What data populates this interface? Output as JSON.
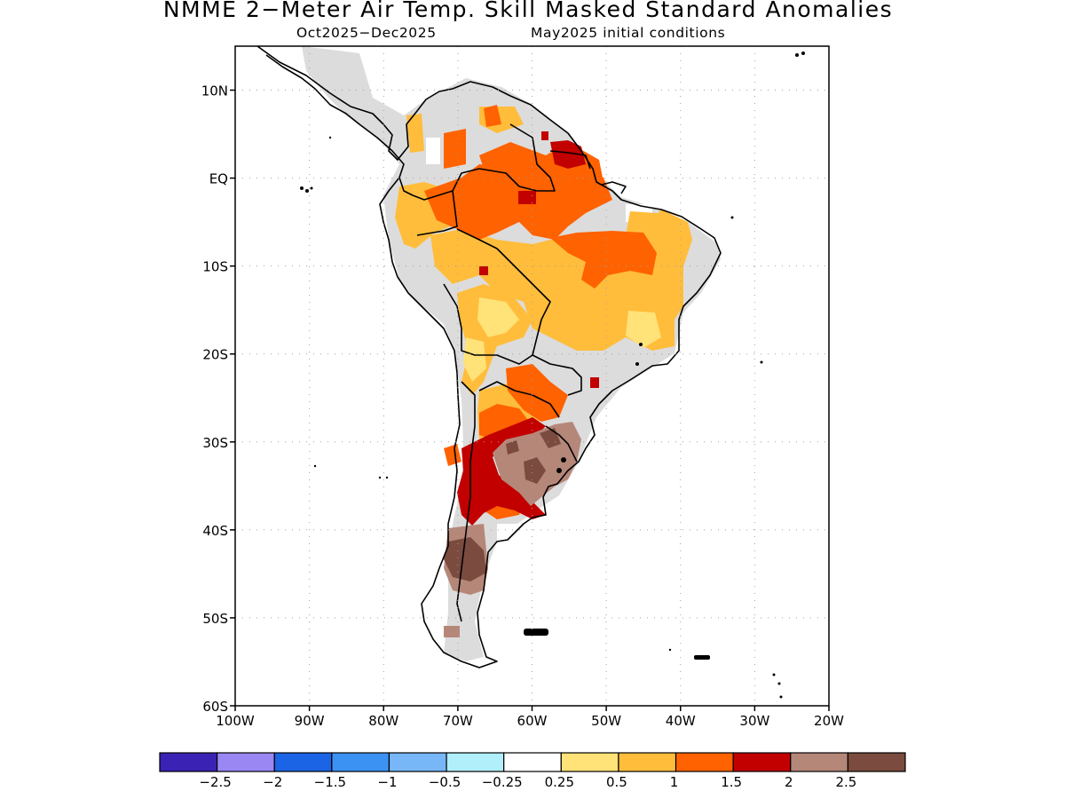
{
  "title": "NMME 2−Meter Air Temp. Skill Masked Standard Anomalies",
  "subtitle_left": "Oct2025−Dec2025",
  "subtitle_right": "May2025 initial conditions",
  "map": {
    "region": "South America",
    "lon_range": [
      -100,
      -20
    ],
    "lat_range": [
      -60,
      15
    ],
    "lat_ticks": [
      {
        "value": 10,
        "label": "10N"
      },
      {
        "value": 0,
        "label": "EQ"
      },
      {
        "value": -10,
        "label": "10S"
      },
      {
        "value": -20,
        "label": "20S"
      },
      {
        "value": -30,
        "label": "30S"
      },
      {
        "value": -40,
        "label": "40S"
      },
      {
        "value": -50,
        "label": "50S"
      },
      {
        "value": -60,
        "label": "60S"
      }
    ],
    "lon_ticks": [
      {
        "value": -100,
        "label": "100W"
      },
      {
        "value": -90,
        "label": "90W"
      },
      {
        "value": -80,
        "label": "80W"
      },
      {
        "value": -70,
        "label": "70W"
      },
      {
        "value": -60,
        "label": "60W"
      },
      {
        "value": -50,
        "label": "50W"
      },
      {
        "value": -40,
        "label": "40W"
      },
      {
        "value": -30,
        "label": "30W"
      },
      {
        "value": -20,
        "label": "20W"
      }
    ],
    "grid": true,
    "masked_color": "#dcdcdc"
  },
  "colorbar": {
    "colors": [
      "#3a22b4",
      "#9b87f3",
      "#1c64e6",
      "#3b92f2",
      "#77b7f7",
      "#b1effa",
      "#ffffff",
      "#ffe278",
      "#ffbd3b",
      "#ff6200",
      "#c20000",
      "#b58779",
      "#7a4b3e"
    ],
    "labels": [
      "−2.5",
      "−2",
      "−1.5",
      "−1",
      "−0.5",
      "−0.25",
      "0.25",
      "0.5",
      "1",
      "1.5",
      "2",
      "2.5"
    ]
  }
}
